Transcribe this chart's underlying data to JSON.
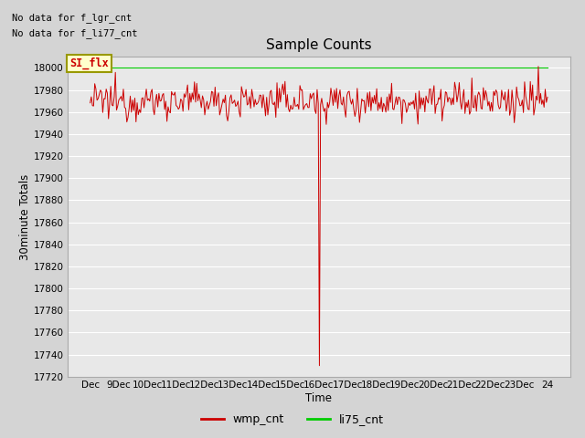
{
  "title": "Sample Counts",
  "xlabel": "Time",
  "ylabel": "30minute Totals",
  "annotations": [
    "No data for f_lgr_cnt",
    "No data for f_li77_cnt"
  ],
  "legend_label": "SI_flx",
  "legend_bg": "#ffffcc",
  "legend_border": "#999900",
  "ylim": [
    17720,
    18010
  ],
  "yticks": [
    17720,
    17740,
    17760,
    17780,
    17800,
    17820,
    17840,
    17860,
    17880,
    17900,
    17920,
    17940,
    17960,
    17980,
    18000
  ],
  "xtick_labels": [
    "Dec",
    "9Dec",
    "10Dec",
    "11Dec",
    "12Dec",
    "13Dec",
    "14Dec",
    "15Dec",
    "16Dec",
    "17Dec",
    "18Dec",
    "19Dec",
    "20Dec",
    "21Dec",
    "22Dec",
    "23Dec",
    "24"
  ],
  "wmp_color": "#cc0000",
  "li75_color": "#00cc00",
  "fig_bg": "#d4d4d4",
  "plot_bg": "#e8e8e8",
  "grid_color": "#ffffff",
  "num_points": 400,
  "base_value": 17970,
  "noise_std": 8,
  "dip_index": 200,
  "dip_value": 17730,
  "li75_value": 18000,
  "legend_entries": [
    "wmp_cnt",
    "li75_cnt"
  ],
  "legend_colors": [
    "#cc0000",
    "#00cc00"
  ],
  "seed": 12345
}
